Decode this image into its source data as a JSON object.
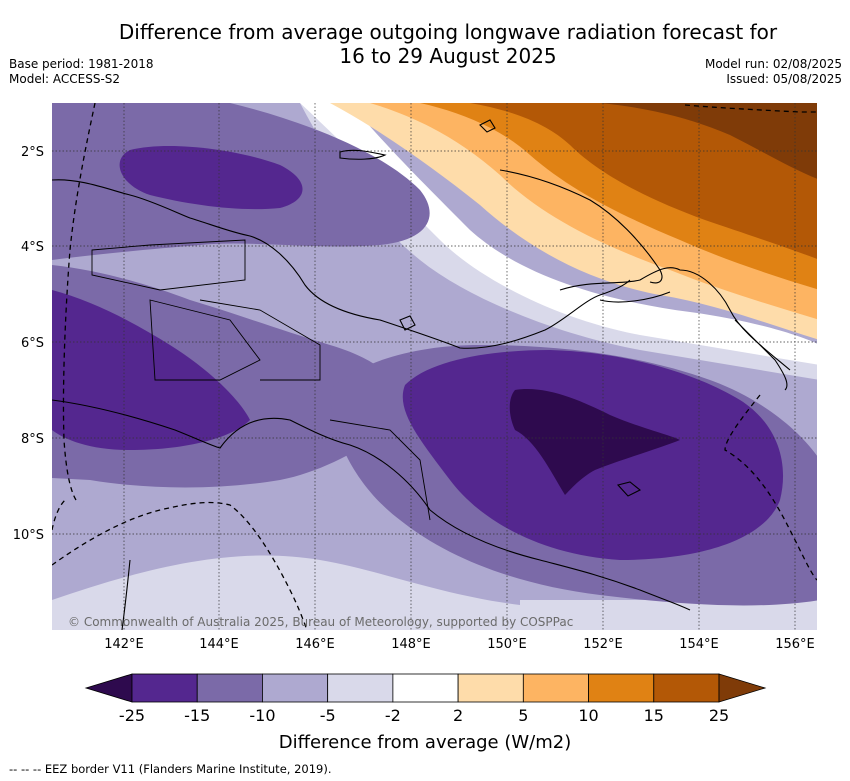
{
  "title": {
    "line1": "Difference from average outgoing longwave radiation forecast for",
    "line2": "16 to 29 August 2025"
  },
  "meta_left": {
    "base_period": "Base period: 1981-2018",
    "model": "Model: ACCESS-S2"
  },
  "meta_right": {
    "model_run": "Model run: 02/08/2025",
    "issued": "Issued: 05/08/2025"
  },
  "map": {
    "lat_labels": [
      "2°S",
      "4°S",
      "6°S",
      "8°S",
      "10°S"
    ],
    "lon_labels": [
      "142°E",
      "144°E",
      "146°E",
      "148°E",
      "150°E",
      "152°E",
      "154°E",
      "156°E"
    ],
    "copyright": "© Commonwealth of Australia 2025, Bureau of Meteorology, supported by COSPPac"
  },
  "colorbar": {
    "ticks": [
      "-25",
      "-15",
      "-10",
      "-5",
      "-2",
      "2",
      "5",
      "10",
      "15",
      "25"
    ],
    "colors": [
      "#2e0a4e",
      "#54278f",
      "#7b6aa8",
      "#aea9d0",
      "#d9d9ea",
      "#ffffff",
      "#fedcaa",
      "#fdb462",
      "#e08214",
      "#b35806",
      "#7f3b08"
    ],
    "label": "Difference from average (W/m2)"
  },
  "footer": {
    "legend_text": "-- EEZ border V11 (Flanders Marine Institute, 2019)."
  }
}
